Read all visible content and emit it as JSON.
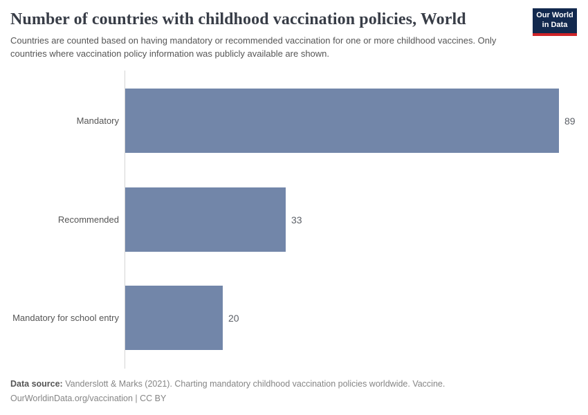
{
  "header": {
    "title": "Number of countries with childhood vaccination policies, World",
    "subtitle": "Countries are counted based on having mandatory or recommended vaccination for one or more childhood vaccines. Only countries where vaccination policy information was publicly available are shown."
  },
  "logo": {
    "line1": "Our World",
    "line2": "in Data",
    "background_color": "#12294e",
    "accent_color": "#cf2428"
  },
  "chart_data": {
    "type": "bar",
    "orientation": "horizontal",
    "title": "Number of countries with childhood vaccination policies, World",
    "categories": [
      "Mandatory",
      "Recommended",
      "Mandatory for school entry"
    ],
    "values": [
      89,
      33,
      20
    ],
    "value_labels": [
      "89",
      "33",
      "20"
    ],
    "xlabel": "",
    "ylabel": "",
    "xlim": [
      0,
      89
    ],
    "grid": false,
    "legend": "none",
    "bar_color": "#7286a9",
    "axis_line_color": "#d4d4d4",
    "category_label_color": "#555555",
    "value_label_color": "#5b5f66"
  },
  "footer": {
    "data_source_label": "Data source:",
    "data_source_text": "Vanderslott & Marks (2021). Charting mandatory childhood vaccination policies worldwide. Vaccine.",
    "license_line": "OurWorldinData.org/vaccination | CC BY"
  }
}
